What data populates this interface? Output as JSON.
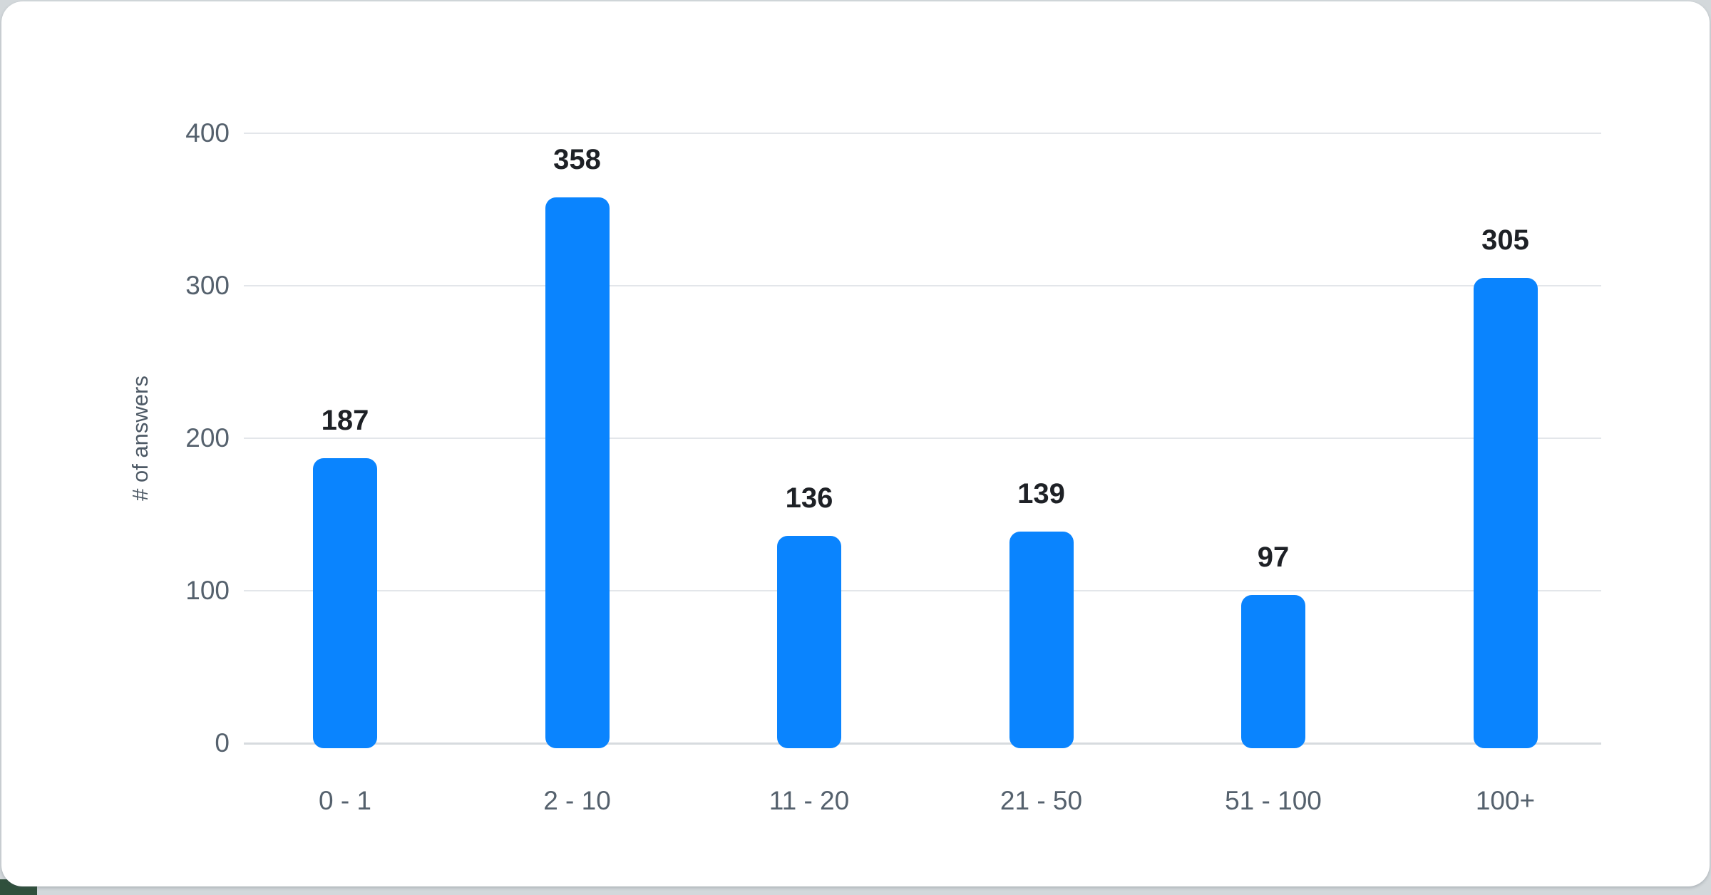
{
  "chart_data": {
    "type": "bar",
    "categories": [
      "0 - 1",
      "2 - 10",
      "11 - 20",
      "21 - 50",
      "51 - 100",
      "100+"
    ],
    "values": [
      187,
      358,
      136,
      139,
      97,
      305
    ],
    "value_labels": [
      "187",
      "358",
      "136",
      "139",
      "97",
      "305"
    ],
    "title": "",
    "xlabel": "",
    "ylabel": "# of answers",
    "ylim": [
      0,
      400
    ],
    "yticks": [
      0,
      100,
      200,
      300,
      400
    ],
    "ytick_labels": [
      "0",
      "100",
      "200",
      "300",
      "400"
    ],
    "grid": true,
    "legend": false,
    "bar_color": "#0a84fe",
    "value_label_color": "#1e2126",
    "axis_text_color": "#55616d",
    "gridline_color": "#e3e6ea",
    "card_background": "#ffffff",
    "page_background": "#d3d8db",
    "corner_accent_color": "#30503c"
  }
}
